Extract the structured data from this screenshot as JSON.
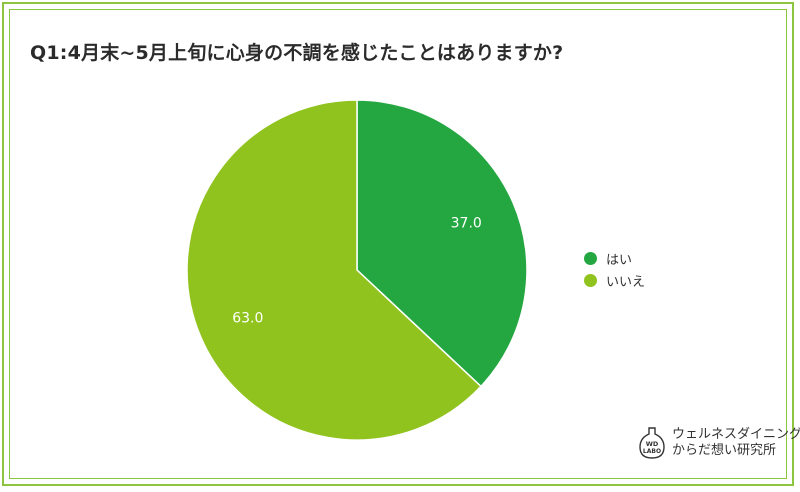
{
  "chart_data": {
    "type": "pie",
    "title": "Q1:4月末~5月上旬に心身の不調を感じたことはありますか?",
    "categories": [
      "はい",
      "いいえ"
    ],
    "values": [
      37.0,
      63.0
    ],
    "data_labels": [
      "37.0",
      "63.0"
    ],
    "colors": [
      "#24a740",
      "#90c31e"
    ],
    "legend_position": "right",
    "start_angle": "12 o'clock",
    "direction": "clockwise"
  },
  "branding": {
    "badge_line1": "WD",
    "badge_line2": "LABO",
    "name_line1": "ウェルネスダイニング",
    "name_line2": "からだ想い研究所"
  },
  "theme": {
    "border": "#8cc63f",
    "text": "#333333"
  }
}
